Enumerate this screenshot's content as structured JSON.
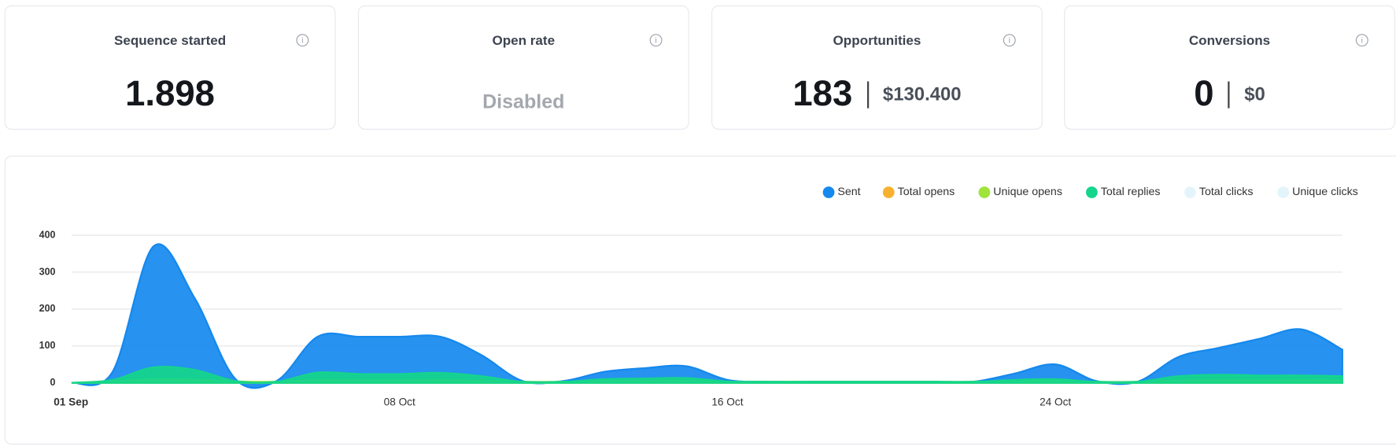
{
  "cards": [
    {
      "title": "Sequence started",
      "value": "1.898"
    },
    {
      "title": "Open rate",
      "value": "Disabled",
      "disabled": true
    },
    {
      "title": "Opportunities",
      "value": "183",
      "amount": "$130.400"
    },
    {
      "title": "Conversions",
      "value": "0",
      "amount": "$0"
    }
  ],
  "chart_data": {
    "type": "area",
    "categories": [
      "01 Sep",
      null,
      null,
      null,
      null,
      null,
      null,
      null,
      "08 Oct",
      null,
      null,
      null,
      null,
      null,
      null,
      null,
      "16 Oct",
      null,
      null,
      null,
      null,
      null,
      null,
      null,
      "24 Oct",
      null,
      null,
      null,
      null,
      null,
      null,
      null
    ],
    "series": [
      {
        "name": "Sent",
        "color": "#1589ee",
        "values": [
          0,
          30,
          370,
          230,
          10,
          5,
          125,
          125,
          125,
          125,
          75,
          5,
          5,
          30,
          40,
          45,
          8,
          3,
          3,
          3,
          3,
          3,
          3,
          25,
          50,
          5,
          3,
          70,
          95,
          120,
          145,
          90
        ]
      },
      {
        "name": "Total opens",
        "color": "#f7b12f",
        "values": [
          0,
          3,
          5,
          5,
          3,
          2,
          4,
          4,
          4,
          4,
          4,
          2,
          2,
          3,
          3,
          3,
          2,
          2,
          2,
          2,
          2,
          2,
          2,
          3,
          3,
          2,
          2,
          4,
          4,
          4,
          4,
          4
        ]
      },
      {
        "name": "Unique opens",
        "color": "#9fe33b",
        "values": [
          0,
          5,
          10,
          9,
          4,
          3,
          8,
          7,
          7,
          8,
          6,
          3,
          3,
          5,
          6,
          6,
          3,
          3,
          3,
          3,
          3,
          3,
          3,
          5,
          6,
          3,
          3,
          7,
          8,
          8,
          8,
          7
        ]
      },
      {
        "name": "Total replies",
        "color": "#15d58c",
        "values": [
          0,
          8,
          42,
          35,
          5,
          3,
          28,
          24,
          24,
          27,
          18,
          3,
          3,
          10,
          12,
          13,
          4,
          3,
          3,
          3,
          3,
          3,
          3,
          8,
          10,
          3,
          3,
          18,
          22,
          20,
          20,
          18
        ]
      },
      {
        "name": "Total clicks",
        "color": "#e4f4fb",
        "hidden": true
      },
      {
        "name": "Unique clicks",
        "color": "#e4f4fb",
        "hidden": true
      }
    ],
    "ylim": [
      0,
      400
    ],
    "yticks": [
      0,
      100,
      200,
      300,
      400
    ],
    "grid": true
  }
}
